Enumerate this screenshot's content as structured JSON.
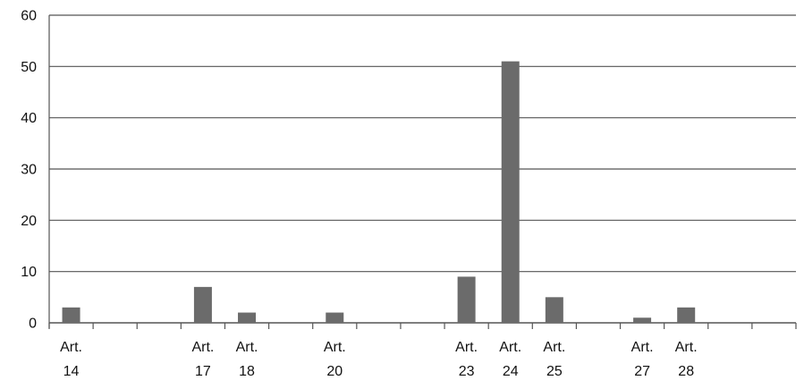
{
  "chart_data": {
    "type": "bar",
    "title": "",
    "xlabel": "",
    "ylabel": "",
    "ylim": [
      0,
      60
    ],
    "yticks": [
      0,
      10,
      20,
      30,
      40,
      50,
      60
    ],
    "grid": true,
    "legend": "none",
    "bar_color": "#6b6b6b",
    "grid_color": "#555555",
    "categories": [
      [
        "Art.",
        "14"
      ],
      [
        "",
        ""
      ],
      [
        "",
        ""
      ],
      [
        "Art.",
        "17"
      ],
      [
        "Art.",
        "18"
      ],
      [
        "",
        ""
      ],
      [
        "Art.",
        "20"
      ],
      [
        "",
        ""
      ],
      [
        "",
        ""
      ],
      [
        "Art.",
        "23"
      ],
      [
        "Art.",
        "24"
      ],
      [
        "Art.",
        "25"
      ],
      [
        "",
        ""
      ],
      [
        "Art.",
        "27"
      ],
      [
        "Art.",
        "28"
      ],
      [
        "",
        ""
      ],
      [
        "",
        ""
      ]
    ],
    "values": [
      3,
      0,
      0,
      7,
      2,
      0,
      2,
      0,
      0,
      9,
      51,
      5,
      0,
      1,
      3,
      0,
      0
    ]
  }
}
